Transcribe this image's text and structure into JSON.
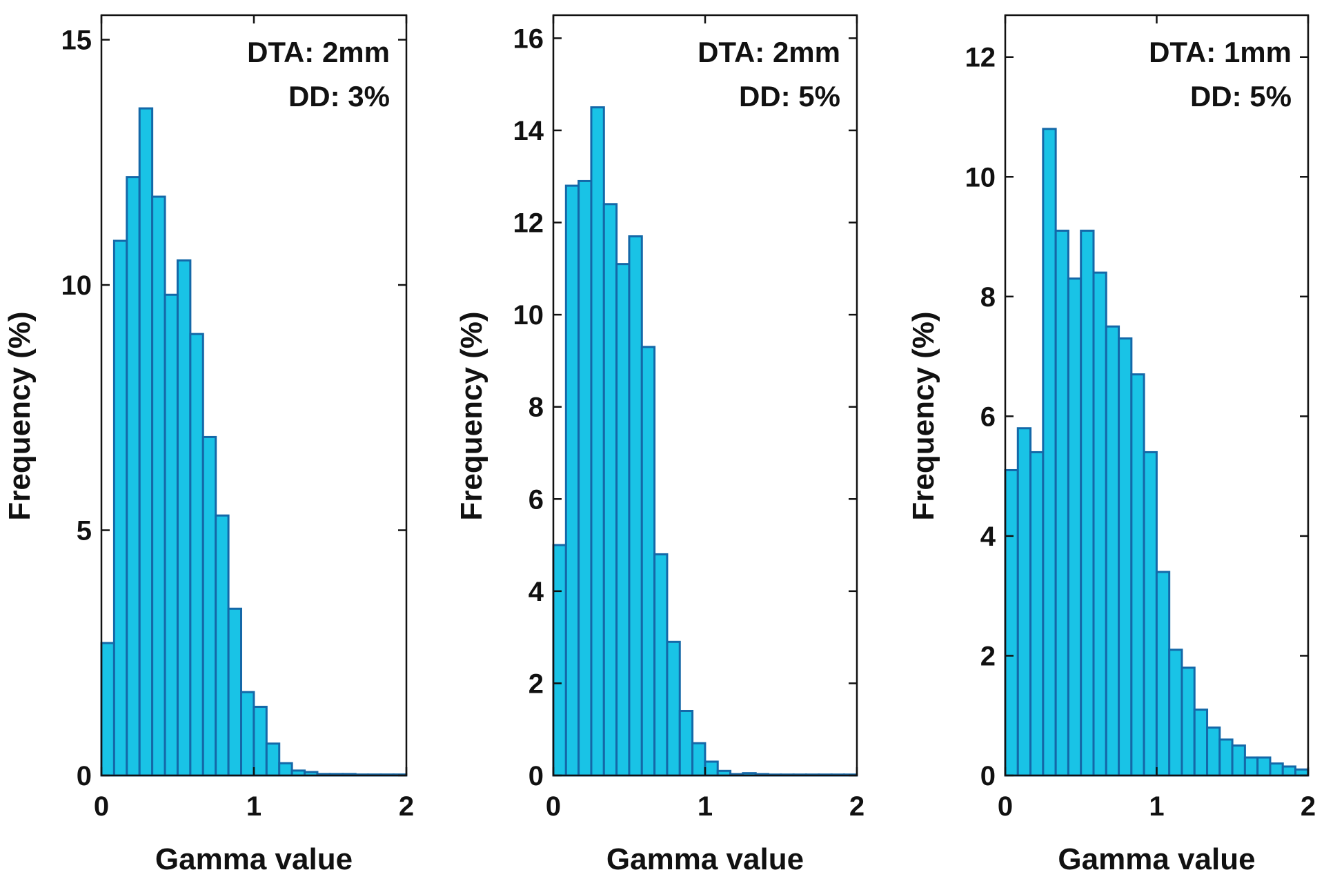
{
  "figure": {
    "bar_fill": "#19c3e6",
    "bar_stroke": "#1468a8",
    "axis_color": "#111111"
  },
  "chart_data": [
    {
      "type": "bar",
      "title": "",
      "annotation": [
        "DTA: 2mm",
        "DD: 3%"
      ],
      "xlabel": "Gamma value",
      "ylabel": "Frequency (%)",
      "xlim": [
        0,
        2
      ],
      "ylim": [
        0,
        15.5
      ],
      "xticks": [
        0,
        1,
        2
      ],
      "yticks": [
        0,
        5,
        10,
        15
      ],
      "bin_width": 0.0833,
      "values": [
        2.7,
        10.9,
        12.2,
        13.6,
        11.8,
        9.8,
        10.5,
        9.0,
        6.9,
        5.3,
        3.4,
        1.7,
        1.4,
        0.65,
        0.25,
        0.1,
        0.07,
        0.03,
        0.03,
        0.03,
        0.02,
        0.02,
        0.02,
        0.02
      ]
    },
    {
      "type": "bar",
      "title": "",
      "annotation": [
        "DTA: 2mm",
        "DD: 5%"
      ],
      "xlabel": "Gamma value",
      "ylabel": "Frequency (%)",
      "xlim": [
        0,
        2
      ],
      "ylim": [
        0,
        16.5
      ],
      "xticks": [
        0,
        1,
        2
      ],
      "yticks": [
        0,
        2,
        4,
        6,
        8,
        10,
        12,
        14,
        16
      ],
      "bin_width": 0.0833,
      "values": [
        5.0,
        12.8,
        12.9,
        14.5,
        12.4,
        11.1,
        11.7,
        9.3,
        4.8,
        2.9,
        1.4,
        0.7,
        0.3,
        0.1,
        0.03,
        0.05,
        0.03,
        0.02,
        0.02,
        0.02,
        0.02,
        0.02,
        0.02,
        0.02
      ]
    },
    {
      "type": "bar",
      "title": "",
      "annotation": [
        "DTA: 1mm",
        "DD: 5%"
      ],
      "xlabel": "Gamma value",
      "ylabel": "Frequency (%)",
      "xlim": [
        0,
        2
      ],
      "ylim": [
        0,
        12.7
      ],
      "xticks": [
        0,
        1,
        2
      ],
      "yticks": [
        0,
        2,
        4,
        6,
        8,
        10,
        12
      ],
      "bin_width": 0.0833,
      "values": [
        5.1,
        5.8,
        5.4,
        10.8,
        9.1,
        8.3,
        9.1,
        8.4,
        7.5,
        7.3,
        6.7,
        5.4,
        3.4,
        2.1,
        1.8,
        1.1,
        0.8,
        0.6,
        0.5,
        0.3,
        0.3,
        0.2,
        0.15,
        0.1
      ]
    }
  ]
}
